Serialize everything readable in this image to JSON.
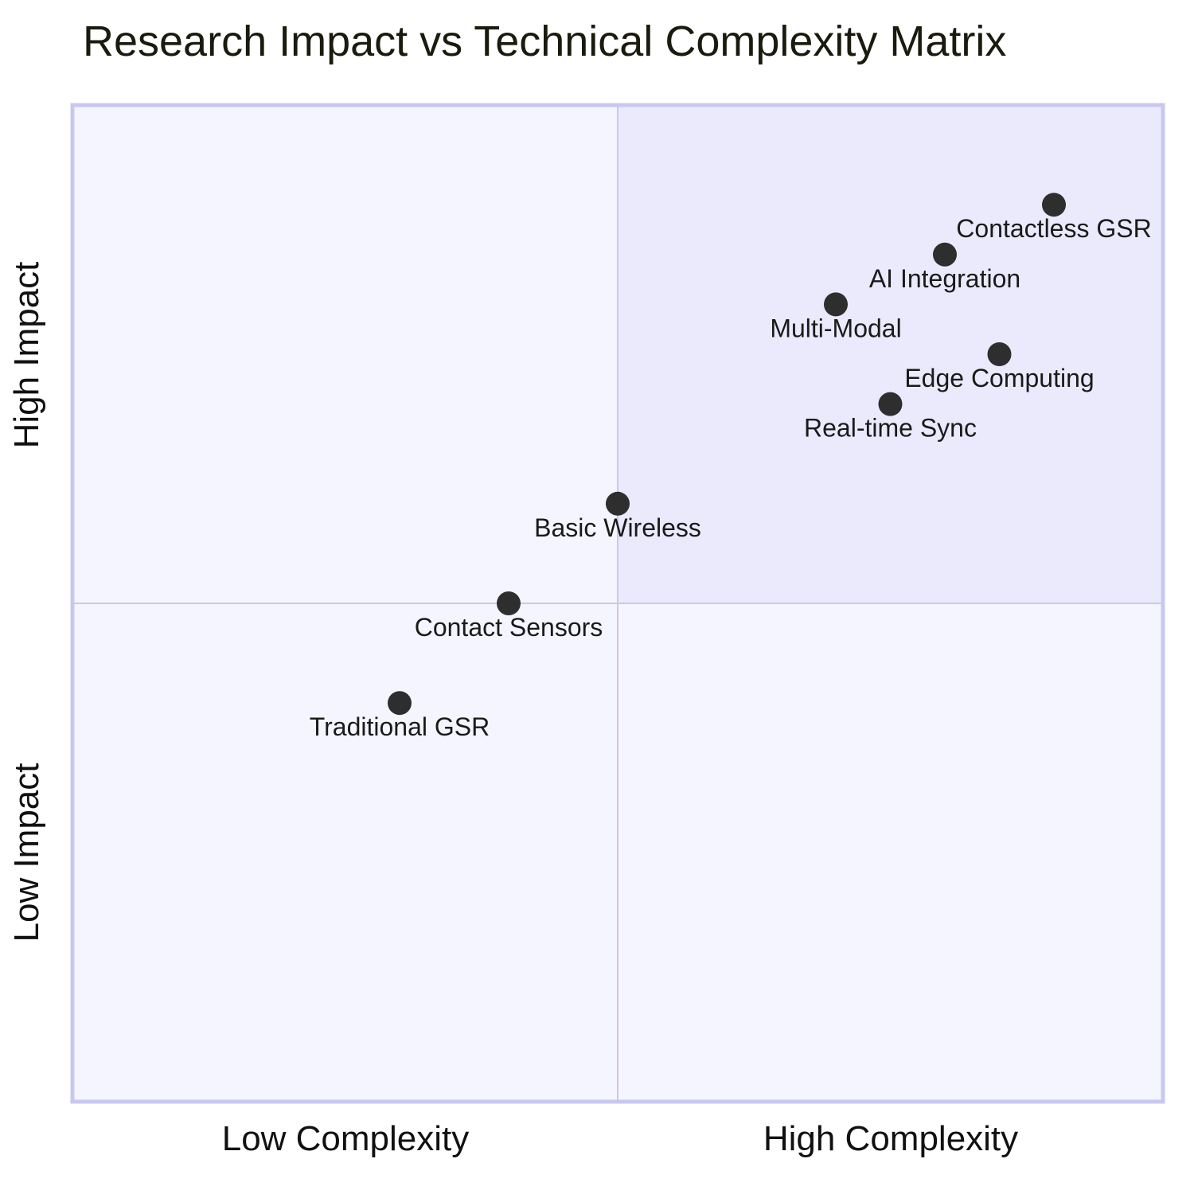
{
  "chart_data": {
    "type": "scatter",
    "title": "Research Impact vs Technical Complexity Matrix",
    "x_axis": {
      "low_label": "Low Complexity",
      "high_label": "High Complexity"
    },
    "y_axis": {
      "low_label": "Low Impact",
      "high_label": "High Impact"
    },
    "xlim": [
      0,
      1
    ],
    "ylim": [
      0,
      1
    ],
    "grid": false,
    "quadrant_split": {
      "x": 0.5,
      "y": 0.5
    },
    "points": [
      {
        "label": "Contactless GSR",
        "x": 0.9,
        "y": 0.9
      },
      {
        "label": "AI Integration",
        "x": 0.8,
        "y": 0.85
      },
      {
        "label": "Multi-Modal",
        "x": 0.7,
        "y": 0.8
      },
      {
        "label": "Edge Computing",
        "x": 0.85,
        "y": 0.75
      },
      {
        "label": "Real-time Sync",
        "x": 0.75,
        "y": 0.7
      },
      {
        "label": "Basic Wireless",
        "x": 0.5,
        "y": 0.6
      },
      {
        "label": "Contact Sensors",
        "x": 0.4,
        "y": 0.5
      },
      {
        "label": "Traditional GSR",
        "x": 0.3,
        "y": 0.4
      }
    ],
    "colors": {
      "border": "#c8c8ef",
      "divider": "#c8c8ef",
      "quadrant_fill": "#f5f5ff",
      "quadrant_highlight": "#eaeafc",
      "point": "#2e2e2e"
    }
  }
}
